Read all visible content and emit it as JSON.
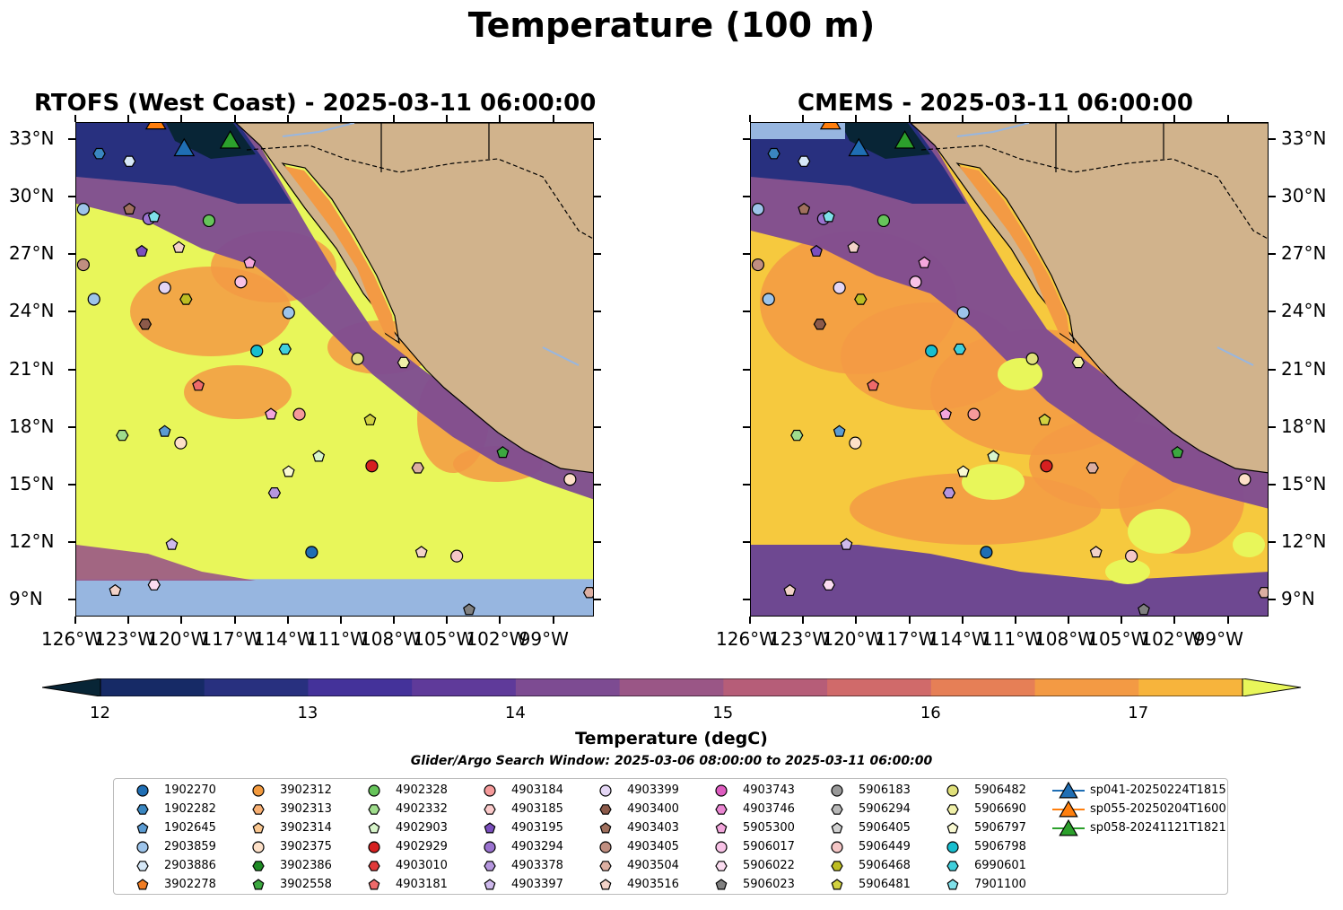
{
  "title": "Temperature (100 m)",
  "panels": [
    {
      "title": "RTOFS (West Coast) - 2025-03-11 06:00:00"
    },
    {
      "title": "CMEMS - 2025-03-11 06:00:00"
    }
  ],
  "axes": {
    "lat_labels": [
      "33°N",
      "30°N",
      "27°N",
      "24°N",
      "21°N",
      "18°N",
      "15°N",
      "12°N",
      "9°N"
    ],
    "lat_values": [
      33,
      30,
      27,
      24,
      21,
      18,
      15,
      12,
      9
    ],
    "lon_labels": [
      "126°W",
      "123°W",
      "120°W",
      "117°W",
      "114°W",
      "111°W",
      "108°W",
      "105°W",
      "102°W",
      "99°W"
    ],
    "lon_values": [
      -126,
      -123,
      -120,
      -117,
      -114,
      -111,
      -108,
      -105,
      -102,
      -99
    ],
    "extent": {
      "lon_min": -126,
      "lon_max": -96.7,
      "lat_min": 8.1,
      "lat_max": 33.9
    }
  },
  "colorbar": {
    "label": "Temperature (degC)",
    "ticks": [
      "12",
      "13",
      "14",
      "15",
      "16",
      "17"
    ],
    "tick_values": [
      12,
      13,
      14,
      15,
      16,
      17
    ],
    "range": [
      12,
      17.5
    ],
    "extend": "both",
    "colors": [
      "#082536",
      "#162a66",
      "#28307f",
      "#44329a",
      "#5f3a9a",
      "#7d4b92",
      "#9a5686",
      "#b65d78",
      "#d06a6a",
      "#e67f56",
      "#f39a44",
      "#f7b43c",
      "#f6c93e",
      "#e8f65a"
    ]
  },
  "search_window": "Glider/Argo Search Window: 2025-03-06 08:00:00 to 2025-03-11 06:00:00",
  "legend": [
    {
      "label": "1902270",
      "shape": "circle",
      "color": "#1f6eb4"
    },
    {
      "label": "1902282",
      "shape": "hexagon",
      "color": "#3a86c0"
    },
    {
      "label": "1902645",
      "shape": "pentagon",
      "color": "#5b9bd2"
    },
    {
      "label": "2903859",
      "shape": "circle",
      "color": "#9dc4ea"
    },
    {
      "label": "2903886",
      "shape": "hexagon",
      "color": "#d6e8f7"
    },
    {
      "label": "3902278",
      "shape": "pentagon",
      "color": "#f07c22"
    },
    {
      "label": "3902312",
      "shape": "circle",
      "color": "#f39a3e"
    },
    {
      "label": "3902313",
      "shape": "hexagon",
      "color": "#f8b073"
    },
    {
      "label": "3902314",
      "shape": "pentagon",
      "color": "#fac790"
    },
    {
      "label": "3902375",
      "shape": "circle",
      "color": "#fde0c8"
    },
    {
      "label": "3902386",
      "shape": "hexagon",
      "color": "#1e8a24"
    },
    {
      "label": "3902558",
      "shape": "pentagon",
      "color": "#3ca840"
    },
    {
      "label": "4902328",
      "shape": "circle",
      "color": "#66c45a"
    },
    {
      "label": "4902332",
      "shape": "hexagon",
      "color": "#9fdc8c"
    },
    {
      "label": "4902903",
      "shape": "pentagon",
      "color": "#d8f5cb"
    },
    {
      "label": "4902929",
      "shape": "circle",
      "color": "#d62020"
    },
    {
      "label": "4903010",
      "shape": "hexagon",
      "color": "#e03a3a"
    },
    {
      "label": "4903181",
      "shape": "pentagon",
      "color": "#ee6a6a"
    },
    {
      "label": "4903184",
      "shape": "circle",
      "color": "#f59a9a"
    },
    {
      "label": "4903185",
      "shape": "hexagon",
      "color": "#fbcaca"
    },
    {
      "label": "4903195",
      "shape": "pentagon",
      "color": "#7b4fbe"
    },
    {
      "label": "4903294",
      "shape": "circle",
      "color": "#9a72cf"
    },
    {
      "label": "4903378",
      "shape": "hexagon",
      "color": "#b596de"
    },
    {
      "label": "4903397",
      "shape": "pentagon",
      "color": "#ceb9ec"
    },
    {
      "label": "4903399",
      "shape": "circle",
      "color": "#e4d6f5"
    },
    {
      "label": "4903400",
      "shape": "hexagon",
      "color": "#8c5a4a"
    },
    {
      "label": "4903403",
      "shape": "pentagon",
      "color": "#a0705e"
    },
    {
      "label": "4903405",
      "shape": "circle",
      "color": "#c08e80"
    },
    {
      "label": "4903504",
      "shape": "hexagon",
      "color": "#dcafa2"
    },
    {
      "label": "4903516",
      "shape": "pentagon",
      "color": "#f2d2c8"
    },
    {
      "label": "4903743",
      "shape": "circle",
      "color": "#de5cc0"
    },
    {
      "label": "4903746",
      "shape": "hexagon",
      "color": "#ea86d2"
    },
    {
      "label": "5905300",
      "shape": "pentagon",
      "color": "#f3a6dc"
    },
    {
      "label": "5906017",
      "shape": "circle",
      "color": "#f8c2e6"
    },
    {
      "label": "5906022",
      "shape": "hexagon",
      "color": "#fbdcf0"
    },
    {
      "label": "5906023",
      "shape": "pentagon",
      "color": "#808080"
    },
    {
      "label": "5906183",
      "shape": "circle",
      "color": "#999999"
    },
    {
      "label": "5906294",
      "shape": "hexagon",
      "color": "#b8b8b8"
    },
    {
      "label": "5906405",
      "shape": "pentagon",
      "color": "#d2d2d2"
    },
    {
      "label": "5906449",
      "shape": "circle",
      "color": "#f5c6c6"
    },
    {
      "label": "5906468",
      "shape": "hexagon",
      "color": "#bdbd22"
    },
    {
      "label": "5906481",
      "shape": "pentagon",
      "color": "#d2d240"
    },
    {
      "label": "5906482",
      "shape": "circle",
      "color": "#e0e07a"
    },
    {
      "label": "5906690",
      "shape": "hexagon",
      "color": "#f0f0a8"
    },
    {
      "label": "5906797",
      "shape": "pentagon",
      "color": "#fafad2"
    },
    {
      "label": "5906798",
      "shape": "circle",
      "color": "#17becf"
    },
    {
      "label": "6990601",
      "shape": "hexagon",
      "color": "#40cfdc"
    },
    {
      "label": "7901100",
      "shape": "pentagon",
      "color": "#7fe0ea"
    },
    {
      "label": "sp041-20250224T1815",
      "shape": "triangle",
      "color": "#1f6eb4"
    },
    {
      "label": "sp055-20250204T1600",
      "shape": "triangle",
      "color": "#ff7f0e"
    },
    {
      "label": "sp058-20241121T1821",
      "shape": "triangle",
      "color": "#2ca02c"
    }
  ],
  "floats": [
    {
      "id": "1902282",
      "lon": -124.7,
      "lat": 32.3
    },
    {
      "id": "2903886",
      "lon": -123.0,
      "lat": 31.9
    },
    {
      "id": "2903859",
      "lon": -125.6,
      "lat": 29.4
    },
    {
      "id": "4903403",
      "lon": -123.0,
      "lat": 29.4
    },
    {
      "id": "4903294",
      "lon": -121.9,
      "lat": 28.9
    },
    {
      "id": "7901100",
      "lon": -121.6,
      "lat": 29.0
    },
    {
      "id": "4902328",
      "lon": -118.5,
      "lat": 28.8
    },
    {
      "id": "4903195",
      "lon": -122.3,
      "lat": 27.2
    },
    {
      "id": "4903516",
      "lon": -120.2,
      "lat": 27.4
    },
    {
      "id": "5905300",
      "lon": -116.2,
      "lat": 26.6
    },
    {
      "id": "4903405",
      "lon": -125.6,
      "lat": 26.5
    },
    {
      "id": "4903399",
      "lon": -121.0,
      "lat": 25.3
    },
    {
      "id": "5906017",
      "lon": -116.7,
      "lat": 25.6
    },
    {
      "id": "2903859",
      "lon": -125.0,
      "lat": 24.7
    },
    {
      "id": "5906468",
      "lon": -119.8,
      "lat": 24.7
    },
    {
      "id": "4903400",
      "lon": -122.1,
      "lat": 23.4
    },
    {
      "id": "2903859",
      "lon": -114.0,
      "lat": 24.0
    },
    {
      "id": "5906798",
      "lon": -115.8,
      "lat": 22.0
    },
    {
      "id": "6990601",
      "lon": -114.2,
      "lat": 22.1
    },
    {
      "id": "5906482",
      "lon": -110.1,
      "lat": 21.6
    },
    {
      "id": "5906690",
      "lon": -107.5,
      "lat": 21.4
    },
    {
      "id": "4903181",
      "lon": -119.1,
      "lat": 20.2
    },
    {
      "id": "5905300",
      "lon": -115.0,
      "lat": 18.7
    },
    {
      "id": "4903184",
      "lon": -113.4,
      "lat": 18.7
    },
    {
      "id": "5906481",
      "lon": -109.4,
      "lat": 18.4
    },
    {
      "id": "4902332",
      "lon": -123.4,
      "lat": 17.6
    },
    {
      "id": "1902645",
      "lon": -121.0,
      "lat": 17.8
    },
    {
      "id": "3902375",
      "lon": -120.1,
      "lat": 17.2
    },
    {
      "id": "4903504",
      "lon": -106.7,
      "lat": 15.9
    },
    {
      "id": "4902929",
      "lon": -109.3,
      "lat": 16.0
    },
    {
      "id": "3902558",
      "lon": -101.9,
      "lat": 16.7
    },
    {
      "id": "5906797",
      "lon": -114.0,
      "lat": 15.7
    },
    {
      "id": "4902903",
      "lon": -112.3,
      "lat": 16.5
    },
    {
      "id": "3902375",
      "lon": -98.1,
      "lat": 15.3
    },
    {
      "id": "4903378",
      "lon": -114.8,
      "lat": 14.6
    },
    {
      "id": "4903397",
      "lon": -120.6,
      "lat": 11.9
    },
    {
      "id": "1902270",
      "lon": -112.7,
      "lat": 11.5
    },
    {
      "id": "4903516",
      "lon": -106.5,
      "lat": 11.5
    },
    {
      "id": "5906449",
      "lon": -104.5,
      "lat": 11.3
    },
    {
      "id": "4903516",
      "lon": -123.8,
      "lat": 9.5
    },
    {
      "id": "5906022",
      "lon": -121.6,
      "lat": 9.8
    },
    {
      "id": "5906023",
      "lon": -103.8,
      "lat": 8.5
    },
    {
      "id": "4903504",
      "lon": -97.0,
      "lat": 9.4
    }
  ],
  "gliders": [
    {
      "id": "sp041-20250224T1815",
      "lon": -119.9,
      "lat": 32.6,
      "color": "#1f6eb4"
    },
    {
      "id": "sp055-20250204T1600",
      "lon": -121.5,
      "lat": 34.0,
      "color": "#ff7f0e"
    },
    {
      "id": "sp058-20241121T1821",
      "lon": -117.3,
      "lat": 33.0,
      "color": "#2ca02c"
    }
  ]
}
